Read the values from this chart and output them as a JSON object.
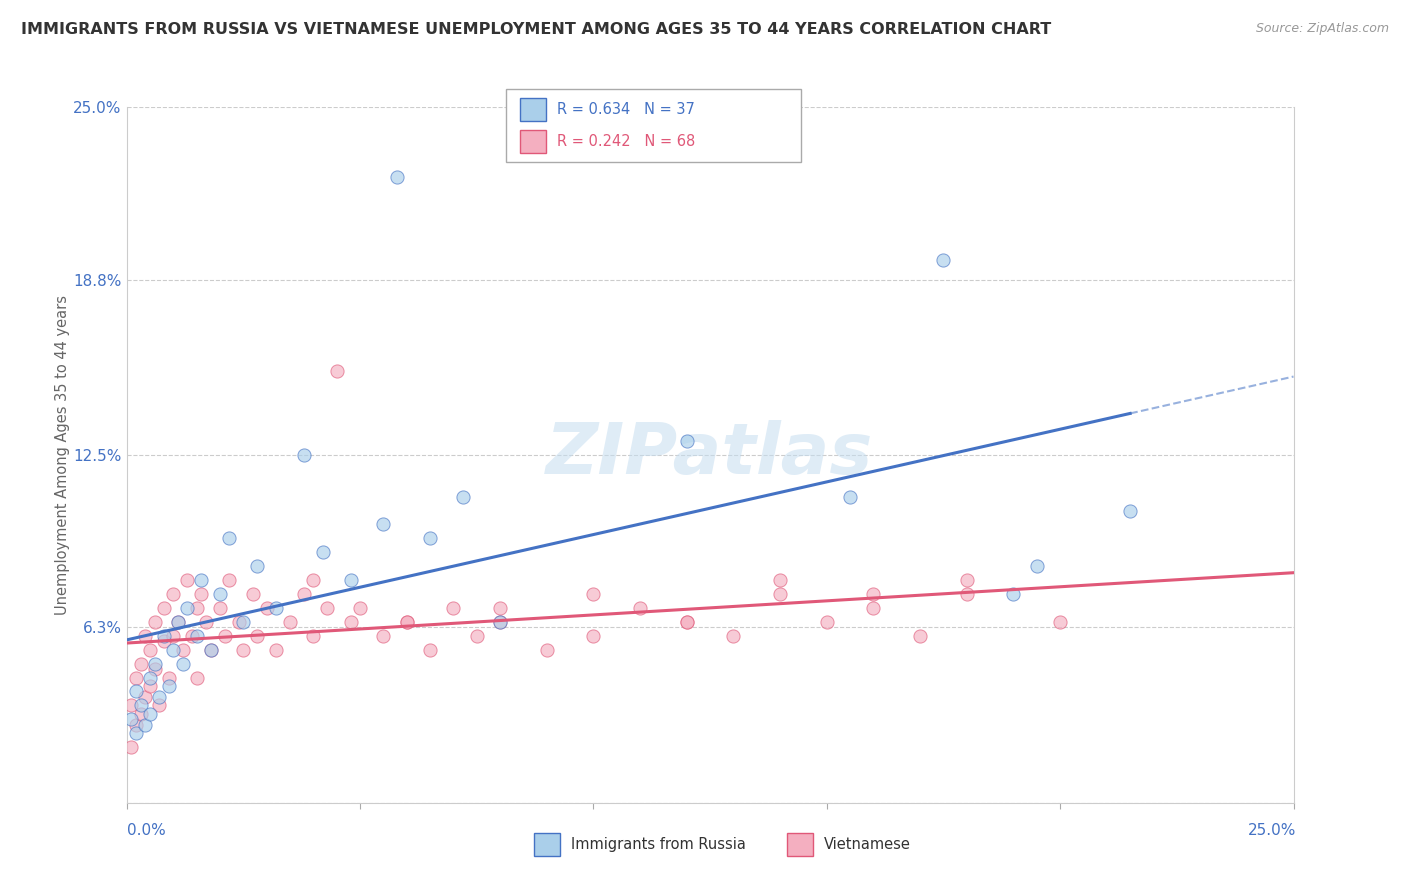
{
  "title": "IMMIGRANTS FROM RUSSIA VS VIETNAMESE UNEMPLOYMENT AMONG AGES 35 TO 44 YEARS CORRELATION CHART",
  "source": "Source: ZipAtlas.com",
  "ylabel": "Unemployment Among Ages 35 to 44 years",
  "ytick_vals": [
    0.0,
    0.063,
    0.125,
    0.188,
    0.25
  ],
  "ytick_labels": [
    "",
    "6.3%",
    "12.5%",
    "18.8%",
    "25.0%"
  ],
  "xlim": [
    0.0,
    0.25
  ],
  "ylim": [
    0.0,
    0.25
  ],
  "legend_label_russia": "Immigrants from Russia",
  "legend_label_vietnamese": "Vietnamese",
  "color_russia_fill": "#aacfea",
  "color_russia_edge": "#4472c4",
  "color_vietnamese_fill": "#f4afc0",
  "color_vietnamese_edge": "#e05878",
  "color_russia_line": "#4472c4",
  "color_vietnamese_line": "#e05878",
  "color_axis_labels": "#4472c4",
  "color_title": "#333333",
  "color_source": "#999999",
  "color_watermark": "#c5ddf0",
  "watermark": "ZIPatlas",
  "R_russia": 0.634,
  "N_russia": 37,
  "R_vietnamese": 0.242,
  "N_vietnamese": 68,
  "title_fontsize": 11.5,
  "axis_label_fontsize": 10.5,
  "tick_fontsize": 11,
  "legend_fontsize": 10.5,
  "marker_size": 90,
  "marker_alpha": 0.65,
  "russia_x": [
    0.001,
    0.002,
    0.002,
    0.003,
    0.004,
    0.005,
    0.005,
    0.006,
    0.007,
    0.008,
    0.009,
    0.01,
    0.011,
    0.012,
    0.013,
    0.015,
    0.016,
    0.018,
    0.02,
    0.022,
    0.025,
    0.028,
    0.032,
    0.038,
    0.042,
    0.048,
    0.055,
    0.058,
    0.065,
    0.072,
    0.08,
    0.12,
    0.155,
    0.175,
    0.19,
    0.195,
    0.215
  ],
  "russia_y": [
    0.03,
    0.025,
    0.04,
    0.035,
    0.028,
    0.045,
    0.032,
    0.05,
    0.038,
    0.06,
    0.042,
    0.055,
    0.065,
    0.05,
    0.07,
    0.06,
    0.08,
    0.055,
    0.075,
    0.095,
    0.065,
    0.085,
    0.07,
    0.125,
    0.09,
    0.08,
    0.1,
    0.225,
    0.095,
    0.11,
    0.065,
    0.13,
    0.11,
    0.195,
    0.075,
    0.085,
    0.105
  ],
  "vietnamese_x": [
    0.001,
    0.001,
    0.002,
    0.002,
    0.003,
    0.003,
    0.004,
    0.004,
    0.005,
    0.005,
    0.006,
    0.006,
    0.007,
    0.008,
    0.008,
    0.009,
    0.01,
    0.01,
    0.011,
    0.012,
    0.013,
    0.014,
    0.015,
    0.015,
    0.016,
    0.017,
    0.018,
    0.02,
    0.021,
    0.022,
    0.024,
    0.025,
    0.027,
    0.028,
    0.03,
    0.032,
    0.035,
    0.038,
    0.04,
    0.043,
    0.045,
    0.048,
    0.05,
    0.055,
    0.06,
    0.065,
    0.07,
    0.075,
    0.08,
    0.09,
    0.1,
    0.11,
    0.12,
    0.13,
    0.14,
    0.15,
    0.16,
    0.17,
    0.18,
    0.2,
    0.04,
    0.06,
    0.08,
    0.1,
    0.12,
    0.14,
    0.16,
    0.18
  ],
  "vietnamese_y": [
    0.02,
    0.035,
    0.028,
    0.045,
    0.032,
    0.05,
    0.038,
    0.06,
    0.042,
    0.055,
    0.048,
    0.065,
    0.035,
    0.058,
    0.07,
    0.045,
    0.06,
    0.075,
    0.065,
    0.055,
    0.08,
    0.06,
    0.07,
    0.045,
    0.075,
    0.065,
    0.055,
    0.07,
    0.06,
    0.08,
    0.065,
    0.055,
    0.075,
    0.06,
    0.07,
    0.055,
    0.065,
    0.075,
    0.06,
    0.07,
    0.155,
    0.065,
    0.07,
    0.06,
    0.065,
    0.055,
    0.07,
    0.06,
    0.065,
    0.055,
    0.06,
    0.07,
    0.065,
    0.06,
    0.075,
    0.065,
    0.07,
    0.06,
    0.075,
    0.065,
    0.08,
    0.065,
    0.07,
    0.075,
    0.065,
    0.08,
    0.075,
    0.08
  ]
}
